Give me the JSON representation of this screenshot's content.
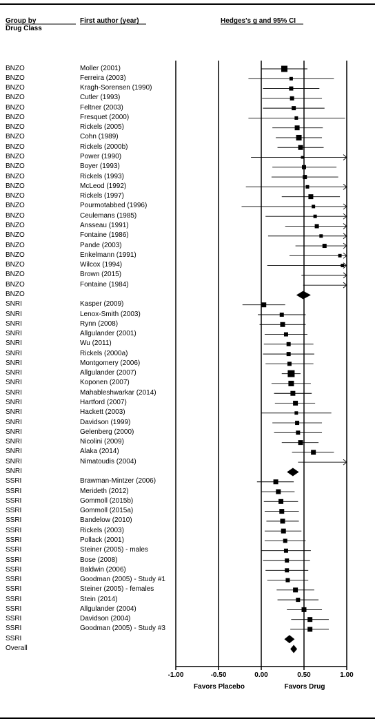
{
  "headers": {
    "group_line1": "Group by",
    "group_line2": "Drug Class",
    "author": "First author (year)",
    "effect": "Hedges's g and 95% CI"
  },
  "axis": {
    "ticks": [
      "-1.00",
      "-0.50",
      "0.00",
      "0.50",
      "1.00"
    ],
    "left_label": "Favors Placebo",
    "right_label": "Favors Drug"
  },
  "chart_data": {
    "type": "forest",
    "title": "",
    "xlabel": "Hedges's g and 95% CI",
    "xlim": [
      -1.0,
      1.0
    ],
    "reference_lines": [
      -1.0,
      -0.5,
      0.0,
      0.5,
      1.0
    ],
    "rows": [
      {
        "group": "BNZO",
        "author": "Moller (2001)",
        "g": 0.27,
        "lo": 0.0,
        "hi": 0.54,
        "size": 9
      },
      {
        "group": "BNZO",
        "author": "Ferreira (2003)",
        "g": 0.35,
        "lo": -0.15,
        "hi": 0.85,
        "size": 5
      },
      {
        "group": "BNZO",
        "author": "Kragh-Sorensen (1990)",
        "g": 0.35,
        "lo": 0.02,
        "hi": 0.68,
        "size": 6
      },
      {
        "group": "BNZO",
        "author": "Cutler (1993)",
        "g": 0.36,
        "lo": 0.01,
        "hi": 0.71,
        "size": 6
      },
      {
        "group": "BNZO",
        "author": "Feltner (2003)",
        "g": 0.38,
        "lo": 0.02,
        "hi": 0.74,
        "size": 6
      },
      {
        "group": "BNZO",
        "author": "Fresquet (2000)",
        "g": 0.41,
        "lo": -0.15,
        "hi": 0.98,
        "size": 5
      },
      {
        "group": "BNZO",
        "author": "Rickels (2005)",
        "g": 0.42,
        "lo": 0.13,
        "hi": 0.72,
        "size": 7
      },
      {
        "group": "BNZO",
        "author": "Cohn (1989)",
        "g": 0.44,
        "lo": 0.17,
        "hi": 0.71,
        "size": 8
      },
      {
        "group": "BNZO",
        "author": "Rickels (2000b)",
        "g": 0.46,
        "lo": 0.19,
        "hi": 0.73,
        "size": 7
      },
      {
        "group": "BNZO",
        "author": "Power (1990)",
        "g": 0.48,
        "lo": -0.12,
        "hi": 1.0,
        "size": 4,
        "arrow": true
      },
      {
        "group": "BNZO",
        "author": "Boyer (1993)",
        "g": 0.5,
        "lo": 0.13,
        "hi": 0.88,
        "size": 6
      },
      {
        "group": "BNZO",
        "author": "Rickels (1993)",
        "g": 0.51,
        "lo": 0.12,
        "hi": 0.9,
        "size": 6
      },
      {
        "group": "BNZO",
        "author": "McLeod (1992)",
        "g": 0.54,
        "lo": -0.18,
        "hi": 1.0,
        "size": 5,
        "arrow": true
      },
      {
        "group": "BNZO",
        "author": "Rickels (1997)",
        "g": 0.58,
        "lo": 0.24,
        "hi": 0.92,
        "size": 7
      },
      {
        "group": "BNZO",
        "author": "Pourmotabbed (1996)",
        "g": 0.61,
        "lo": -0.23,
        "hi": 1.0,
        "size": 5,
        "arrow": true
      },
      {
        "group": "BNZO",
        "author": "Ceulemans (1985)",
        "g": 0.63,
        "lo": 0.05,
        "hi": 1.0,
        "size": 5,
        "arrow": true
      },
      {
        "group": "BNZO",
        "author": "Ansseau (1991)",
        "g": 0.65,
        "lo": 0.28,
        "hi": 1.0,
        "size": 6,
        "arrow": true
      },
      {
        "group": "BNZO",
        "author": "Fontaine (1986)",
        "g": 0.7,
        "lo": 0.08,
        "hi": 1.0,
        "size": 5,
        "arrow": true
      },
      {
        "group": "BNZO",
        "author": "Pande (2003)",
        "g": 0.74,
        "lo": 0.4,
        "hi": 1.0,
        "size": 6,
        "arrow": true
      },
      {
        "group": "BNZO",
        "author": "Enkelmann (1991)",
        "g": 0.92,
        "lo": 0.33,
        "hi": 1.0,
        "size": 5,
        "arrow": true
      },
      {
        "group": "BNZO",
        "author": "Wilcox (1994)",
        "g": 0.95,
        "lo": 0.07,
        "hi": 1.0,
        "size": 5,
        "arrow": true
      },
      {
        "group": "BNZO",
        "author": "Brown (2015)",
        "g": null,
        "lo": 0.47,
        "hi": 1.0,
        "size": 0,
        "arrow": true
      },
      {
        "group": "BNZO",
        "author": "Fontaine (1984)",
        "g": null,
        "lo": 0.49,
        "hi": 1.0,
        "size": 0,
        "arrow": true
      },
      {
        "group": "BNZO",
        "author": "",
        "g": 0.49,
        "lo": 0.41,
        "hi": 0.58,
        "summary": true
      },
      {
        "group": "SNRI",
        "author": "Kasper (2009)",
        "g": 0.03,
        "lo": -0.22,
        "hi": 0.28,
        "size": 7
      },
      {
        "group": "SNRI",
        "author": "Lenox-Smith (2003)",
        "g": 0.24,
        "lo": -0.04,
        "hi": 0.52,
        "size": 6
      },
      {
        "group": "SNRI",
        "author": "Rynn (2008)",
        "g": 0.25,
        "lo": -0.02,
        "hi": 0.52,
        "size": 7
      },
      {
        "group": "SNRI",
        "author": "Allgulander (2001)",
        "g": 0.29,
        "lo": 0.04,
        "hi": 0.54,
        "size": 6
      },
      {
        "group": "SNRI",
        "author": "Wu (2011)",
        "g": 0.32,
        "lo": 0.03,
        "hi": 0.61,
        "size": 6
      },
      {
        "group": "SNRI",
        "author": "Rickels (2000a)",
        "g": 0.32,
        "lo": 0.02,
        "hi": 0.62,
        "size": 6
      },
      {
        "group": "SNRI",
        "author": "Montgomery (2006)",
        "g": 0.33,
        "lo": 0.05,
        "hi": 0.61,
        "size": 6
      },
      {
        "group": "SNRI",
        "author": "Allgulander (2007)",
        "g": 0.35,
        "lo": 0.24,
        "hi": 0.46,
        "size": 10
      },
      {
        "group": "SNRI",
        "author": "Koponen (2007)",
        "g": 0.35,
        "lo": 0.12,
        "hi": 0.58,
        "size": 8
      },
      {
        "group": "SNRI",
        "author": "Mahableshwarkar (2014)",
        "g": 0.37,
        "lo": 0.15,
        "hi": 0.59,
        "size": 7
      },
      {
        "group": "SNRI",
        "author": "Hartford (2007)",
        "g": 0.4,
        "lo": 0.16,
        "hi": 0.63,
        "size": 7
      },
      {
        "group": "SNRI",
        "author": "Hackett (2003)",
        "g": 0.41,
        "lo": 0.0,
        "hi": 0.82,
        "size": 5
      },
      {
        "group": "SNRI",
        "author": "Davidson (1999)",
        "g": 0.42,
        "lo": 0.13,
        "hi": 0.71,
        "size": 6
      },
      {
        "group": "SNRI",
        "author": "Gelenberg (2000)",
        "g": 0.43,
        "lo": 0.15,
        "hi": 0.71,
        "size": 6
      },
      {
        "group": "SNRI",
        "author": "Nicolini (2009)",
        "g": 0.46,
        "lo": 0.24,
        "hi": 0.67,
        "size": 7
      },
      {
        "group": "SNRI",
        "author": "Alaka (2014)",
        "g": 0.61,
        "lo": 0.36,
        "hi": 0.85,
        "size": 7
      },
      {
        "group": "SNRI",
        "author": "Nimatoudis (2004)",
        "g": null,
        "lo": 0.43,
        "hi": 1.0,
        "size": 0,
        "arrow": true
      },
      {
        "group": "SNRI",
        "author": "",
        "g": 0.37,
        "lo": 0.3,
        "hi": 0.44,
        "summary": true
      },
      {
        "group": "SSRI",
        "author": "Brawman-Mintzer (2006)",
        "g": 0.17,
        "lo": -0.05,
        "hi": 0.38,
        "size": 7
      },
      {
        "group": "SSRI",
        "author": "Merideth (2012)",
        "g": 0.2,
        "lo": 0.0,
        "hi": 0.39,
        "size": 7
      },
      {
        "group": "SSRI",
        "author": "Gommoll (2015b)",
        "g": 0.23,
        "lo": 0.03,
        "hi": 0.43,
        "size": 7
      },
      {
        "group": "SSRI",
        "author": "Gommoll (2015a)",
        "g": 0.24,
        "lo": 0.04,
        "hi": 0.44,
        "size": 7
      },
      {
        "group": "SSRI",
        "author": "Bandelow (2010)",
        "g": 0.25,
        "lo": 0.06,
        "hi": 0.44,
        "size": 7
      },
      {
        "group": "SSRI",
        "author": "Rickels (2003)",
        "g": 0.26,
        "lo": 0.04,
        "hi": 0.47,
        "size": 7
      },
      {
        "group": "SSRI",
        "author": "Pollack (2001)",
        "g": 0.28,
        "lo": 0.04,
        "hi": 0.52,
        "size": 6
      },
      {
        "group": "SSRI",
        "author": "Steiner (2005) - males",
        "g": 0.29,
        "lo": 0.0,
        "hi": 0.58,
        "size": 6
      },
      {
        "group": "SSRI",
        "author": "Bose (2008)",
        "g": 0.3,
        "lo": 0.02,
        "hi": 0.57,
        "size": 6
      },
      {
        "group": "SSRI",
        "author": "Baldwin (2006)",
        "g": 0.3,
        "lo": 0.05,
        "hi": 0.55,
        "size": 6
      },
      {
        "group": "SSRI",
        "author": "Goodman (2005) - Study #1",
        "g": 0.31,
        "lo": 0.07,
        "hi": 0.55,
        "size": 6
      },
      {
        "group": "SSRI",
        "author": "Steiner (2005) - females",
        "g": 0.4,
        "lo": 0.18,
        "hi": 0.62,
        "size": 7
      },
      {
        "group": "SSRI",
        "author": "Stein (2014)",
        "g": 0.43,
        "lo": 0.19,
        "hi": 0.67,
        "size": 6
      },
      {
        "group": "SSRI",
        "author": "Allgulander (2004)",
        "g": 0.5,
        "lo": 0.3,
        "hi": 0.71,
        "size": 7
      },
      {
        "group": "SSRI",
        "author": "Davidson (2004)",
        "g": 0.57,
        "lo": 0.35,
        "hi": 0.79,
        "size": 7
      },
      {
        "group": "SSRI",
        "author": "Goodman (2005) - Study #3",
        "g": 0.57,
        "lo": 0.34,
        "hi": 0.79,
        "size": 7
      },
      {
        "group": "SSRI",
        "author": "",
        "g": 0.33,
        "lo": 0.27,
        "hi": 0.39,
        "summary": true
      },
      {
        "group": "Overall",
        "author": "",
        "g": 0.38,
        "lo": 0.34,
        "hi": 0.42,
        "summary": true
      }
    ]
  }
}
